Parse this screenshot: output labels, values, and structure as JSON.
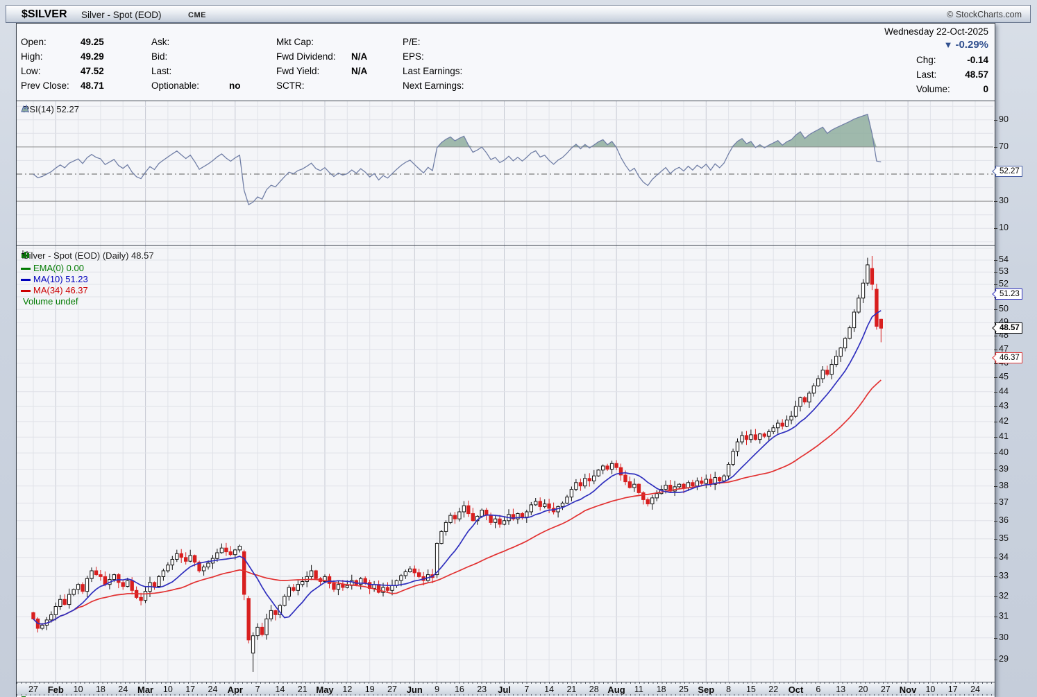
{
  "titlebar": {
    "symbol": "$SILVER",
    "name": "Silver - Spot (EOD)",
    "exchange": "CME",
    "copyright": "© StockCharts.com"
  },
  "quote": {
    "col1": [
      {
        "label": "Open:",
        "value": "49.25"
      },
      {
        "label": "High:",
        "value": "49.29"
      },
      {
        "label": "Low:",
        "value": "47.52"
      },
      {
        "label": "Prev Close:",
        "value": "48.71"
      }
    ],
    "col2": [
      {
        "label": "Ask:",
        "value": ""
      },
      {
        "label": "Bid:",
        "value": ""
      },
      {
        "label": "Last:",
        "value": ""
      },
      {
        "label": "Optionable:",
        "value": "no"
      }
    ],
    "col3": [
      {
        "label": "Mkt Cap:",
        "value": ""
      },
      {
        "label": "Fwd Dividend:",
        "value": "N/A"
      },
      {
        "label": "Fwd Yield:",
        "value": "N/A"
      },
      {
        "label": "SCTR:",
        "value": ""
      }
    ],
    "col4": [
      {
        "label": "P/E:",
        "value": ""
      },
      {
        "label": "EPS:",
        "value": ""
      },
      {
        "label": "Last Earnings:",
        "value": ""
      },
      {
        "label": "Next Earnings:",
        "value": ""
      }
    ],
    "date": "Wednesday 22-Oct-2025",
    "direction_icon": "▼",
    "pct_change": "-0.29%",
    "right_rows": [
      {
        "label": "Chg:",
        "value": "-0.14"
      },
      {
        "label": "Last:",
        "value": "48.57"
      },
      {
        "label": "Volume:",
        "value": "0"
      }
    ]
  },
  "rsi_panel": {
    "legend": "RSI(14) 52.27",
    "last_value": 52.27,
    "axis_labels": [
      90,
      70,
      30,
      10
    ],
    "overbought": 70,
    "oversold": 30,
    "midline": 50,
    "line_color": "#717fa6",
    "fill_color": "#8fae9f"
  },
  "price_panel": {
    "legend_title": "Silver - Spot (EOD) (Daily) 48.57",
    "legend_items": [
      {
        "label": "EMA(0) 0.00",
        "color": "#007a00",
        "icon": "line-swatch"
      },
      {
        "label": "MA(10) 51.23",
        "color": "#0000bb",
        "icon": "line-swatch"
      },
      {
        "label": "MA(34) 46.37",
        "color": "#cc0000",
        "icon": "line-swatch"
      },
      {
        "label": "Volume undef",
        "color": "#007a00",
        "icon": "volume-bars"
      }
    ],
    "axis_min": 29,
    "axis_max": 54,
    "callouts": [
      {
        "text": "51.23",
        "value": 51.23,
        "color": "#2f2fbe",
        "bold": false
      },
      {
        "text": "48.57",
        "value": 48.57,
        "color": "#000000",
        "bold": true
      },
      {
        "text": "46.37",
        "value": 46.37,
        "color": "#e23131",
        "bold": false
      }
    ],
    "up_candle": {
      "fill": "#ffffff",
      "stroke": "#111111"
    },
    "down_candle": {
      "fill": "#d81f1f",
      "stroke": "#d81f1f"
    }
  },
  "chart_data": {
    "type": "candlestick",
    "title": "Silver - Spot (EOD) (Daily)",
    "log_scale": true,
    "price_axis_range": [
      28.0,
      55.3
    ],
    "rsi_axis_range": [
      0,
      100
    ],
    "x_tick_labels": [
      "27",
      "Feb",
      "10",
      "18",
      "24",
      "Mar",
      "10",
      "17",
      "24",
      "Apr",
      "7",
      "14",
      "21",
      "May",
      "12",
      "19",
      "27",
      "Jun",
      "9",
      "16",
      "23",
      "Jul",
      "7",
      "14",
      "21",
      "28",
      "Aug",
      "11",
      "18",
      "25",
      "Sep",
      "8",
      "15",
      "22",
      "Oct",
      "6",
      "13",
      "20",
      "27",
      "Nov",
      "10",
      "17",
      "24"
    ],
    "last_close": 48.57,
    "ma10_last": 51.23,
    "ma34_last": 46.37,
    "rsi_last": 52.27,
    "daily_closes": [
      30.9,
      30.45,
      30.6,
      30.85,
      31.1,
      31.5,
      31.85,
      31.6,
      32.1,
      32.35,
      32.6,
      32.25,
      32.9,
      33.3,
      33.1,
      33.0,
      32.6,
      32.85,
      33.1,
      32.7,
      32.5,
      32.8,
      32.3,
      31.95,
      31.8,
      32.25,
      32.7,
      32.5,
      33.0,
      33.3,
      33.6,
      33.9,
      34.2,
      34.0,
      33.8,
      34.1,
      33.75,
      33.3,
      33.5,
      33.7,
      33.95,
      34.25,
      34.5,
      34.3,
      34.15,
      34.4,
      34.6,
      32.1,
      29.9,
      30.1,
      30.5,
      30.15,
      30.9,
      31.3,
      31.1,
      31.55,
      32.0,
      32.45,
      32.3,
      32.6,
      32.75,
      33.0,
      33.3,
      32.9,
      32.75,
      33.0,
      32.65,
      32.35,
      32.6,
      32.45,
      32.55,
      32.8,
      32.6,
      32.9,
      32.7,
      32.4,
      32.6,
      32.2,
      32.45,
      32.3,
      32.55,
      32.8,
      33.05,
      33.25,
      33.4,
      33.2,
      33.0,
      32.8,
      33.1,
      32.95,
      34.75,
      35.4,
      35.9,
      36.3,
      36.1,
      36.5,
      36.85,
      36.4,
      36.0,
      36.25,
      36.6,
      36.3,
      35.9,
      36.1,
      35.8,
      36.0,
      36.35,
      36.1,
      36.4,
      36.2,
      36.5,
      36.9,
      37.1,
      36.8,
      36.95,
      36.7,
      36.5,
      36.8,
      37.0,
      37.35,
      37.8,
      38.2,
      38.0,
      38.45,
      38.3,
      38.6,
      38.95,
      39.2,
      39.0,
      39.35,
      39.1,
      38.65,
      38.25,
      37.9,
      38.1,
      37.6,
      37.2,
      36.95,
      37.3,
      37.55,
      37.8,
      38.05,
      37.7,
      37.95,
      38.1,
      37.9,
      38.2,
      38.0,
      38.3,
      38.15,
      38.4,
      38.1,
      38.5,
      38.3,
      38.6,
      39.3,
      40.1,
      40.7,
      41.1,
      40.85,
      41.15,
      40.85,
      41.2,
      41.05,
      41.35,
      41.6,
      41.9,
      41.7,
      42.1,
      42.35,
      43.0,
      43.6,
      43.3,
      43.9,
      44.4,
      44.9,
      45.5,
      45.2,
      45.9,
      46.5,
      47.1,
      47.8,
      48.6,
      49.8,
      50.9,
      52.1,
      53.6,
      52.0,
      48.71,
      48.57
    ],
    "overrides": {
      "47": {
        "open": 34.3
      },
      "48": {
        "open": 31.9
      },
      "49": {
        "open": 29.3,
        "low": 28.45
      },
      "90": {
        "open": 33.1
      },
      "186": {
        "high": 54.2
      },
      "187": {
        "open": 53.3,
        "high": 54.35
      },
      "188": {
        "open": 51.6
      },
      "189": {
        "open": 49.25,
        "high": 49.29,
        "low": 47.52
      }
    },
    "ma_periods": [
      10,
      34
    ],
    "rsi_period": 14
  }
}
